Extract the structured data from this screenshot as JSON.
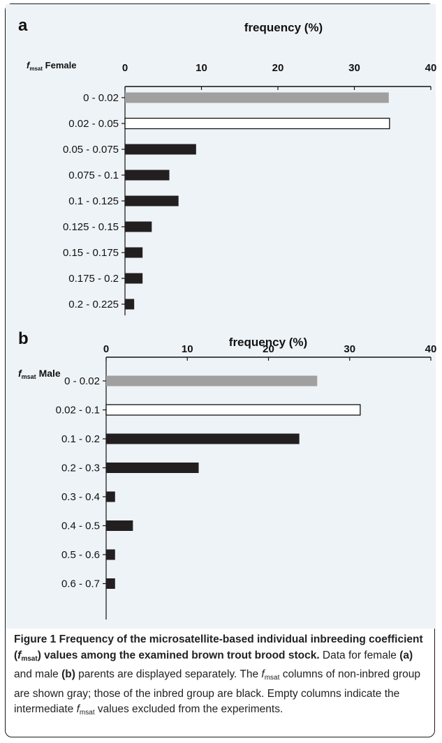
{
  "chart_data": [
    {
      "type": "bar",
      "orientation": "horizontal",
      "panel_label": "a",
      "title": "frequency (%)",
      "ylabel_italic": "f",
      "ylabel_sub": "msat",
      "ylabel_rest": "Female",
      "xlim": [
        0,
        40
      ],
      "xticks": [
        "0",
        "10",
        "20",
        "30",
        "40"
      ],
      "categories": [
        "0 - 0.02",
        "0.02 - 0.05",
        "0.05 - 0.075",
        "0.075 - 0.1",
        "0.1 - 0.125",
        "0.125 - 0.15",
        "0.15 - 0.175",
        "0.175 - 0.2",
        "0.2 - 0.225"
      ],
      "values": [
        34.5,
        34.6,
        9.3,
        5.8,
        7.0,
        3.5,
        2.3,
        2.3,
        1.2
      ],
      "groups": [
        "non-inbred",
        "intermediate",
        "inbred",
        "inbred",
        "inbred",
        "inbred",
        "inbred",
        "inbred",
        "inbred"
      ]
    },
    {
      "type": "bar",
      "orientation": "horizontal",
      "panel_label": "b",
      "title": "frequency (%)",
      "ylabel_italic": "f",
      "ylabel_sub": "msat",
      "ylabel_rest": "Male",
      "xlim": [
        0,
        40
      ],
      "xticks": [
        "0",
        "10",
        "20",
        "30",
        "40"
      ],
      "categories": [
        "0 - 0.02",
        "0.02 - 0.1",
        "0.1 - 0.2",
        "0.2 - 0.3",
        "0.3 - 0.4",
        "0.4 - 0.5",
        "0.5 - 0.6",
        "0.6 - 0.7"
      ],
      "values": [
        26.0,
        31.3,
        23.8,
        11.4,
        1.1,
        3.3,
        1.1,
        1.1
      ],
      "groups": [
        "non-inbred",
        "intermediate",
        "inbred",
        "inbred",
        "inbred",
        "inbred",
        "inbred",
        "inbred"
      ]
    }
  ],
  "colors": {
    "non-inbred": "#a0a0a0",
    "intermediate": "#ffffff",
    "inbred": "#231f20",
    "figure_background": "#eef3f7"
  },
  "caption": {
    "bold_part1": "Figure 1 Frequency of the microsatellite-based individual inbreeding coefficient (",
    "bold_italic_f": "f",
    "bold_sub": "msat",
    "bold_part2": ") values among the examined brown trout brood stock.",
    "text1": " Data for female ",
    "label_a": "(a)",
    "text2": " and male ",
    "label_b": "(b)",
    "text3": " parents are displayed separately. The ",
    "italic_f": "f",
    "sub": "msat",
    "text4": " columns of non-inbred group are shown gray; those of the inbred group are black. Empty columns indicate the intermediate ",
    "italic_f2": "f",
    "sub2": "msat",
    "text5": " values excluded from the experiments."
  }
}
